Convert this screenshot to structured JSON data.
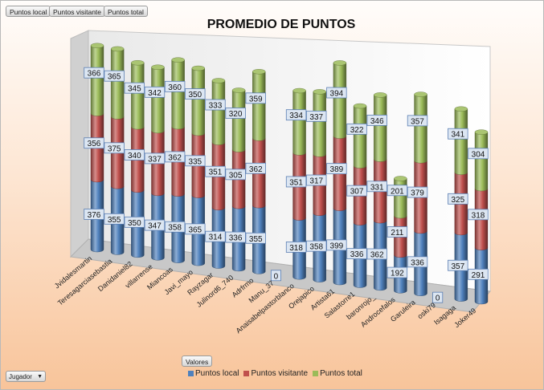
{
  "field_buttons": [
    "Puntos local",
    "Puntos visitante",
    "Puntos total"
  ],
  "values_button": "Valores",
  "filter_dropdown": {
    "label": "Jugador",
    "arrow": "▼"
  },
  "colors": {
    "local": "#4f81bd",
    "visitante": "#c0504d",
    "total": "#9bbb59",
    "label_bg": "#dce6f2",
    "label_border": "#5b7fb3"
  },
  "chart_data": {
    "type": "bar",
    "stacked": true,
    "style": "3d-cylinder",
    "title": "PROMEDIO DE PUNTOS",
    "categories": [
      "Jvidalesmartin",
      "Teresagarciasebastia",
      "Danidaniel82",
      "villarrense",
      "Miancoas",
      "Javi_mayo",
      "Rayzagar",
      "Julinord6_740",
      "Adrfrmo",
      "Manu_37",
      "Anaisabelpastorblanco",
      "Orejapico",
      "Artista61",
      "Salastorre1",
      "baronrojo_",
      "Androcefalos",
      "Garuleira",
      "oski79",
      "Isagaga",
      "Joker49"
    ],
    "series": [
      {
        "name": "Puntos local",
        "values": [
          376,
          355,
          350,
          347,
          358,
          365,
          314,
          336,
          355,
          0,
          318,
          358,
          399,
          336,
          362,
          192,
          336,
          0,
          357,
          291
        ]
      },
      {
        "name": "Puntos visitante",
        "values": [
          356,
          375,
          340,
          337,
          362,
          335,
          351,
          305,
          362,
          null,
          351,
          317,
          389,
          307,
          331,
          211,
          379,
          null,
          325,
          318
        ]
      },
      {
        "name": "Puntos total",
        "values": [
          366,
          365,
          345,
          342,
          360,
          350,
          333,
          320,
          359,
          null,
          334,
          337,
          394,
          322,
          346,
          201,
          357,
          null,
          341,
          304
        ]
      }
    ],
    "xlabel": "",
    "ylabel": "",
    "legend_position": "bottom",
    "legend": [
      "Puntos local",
      "Puntos visitante",
      "Puntos total"
    ]
  }
}
